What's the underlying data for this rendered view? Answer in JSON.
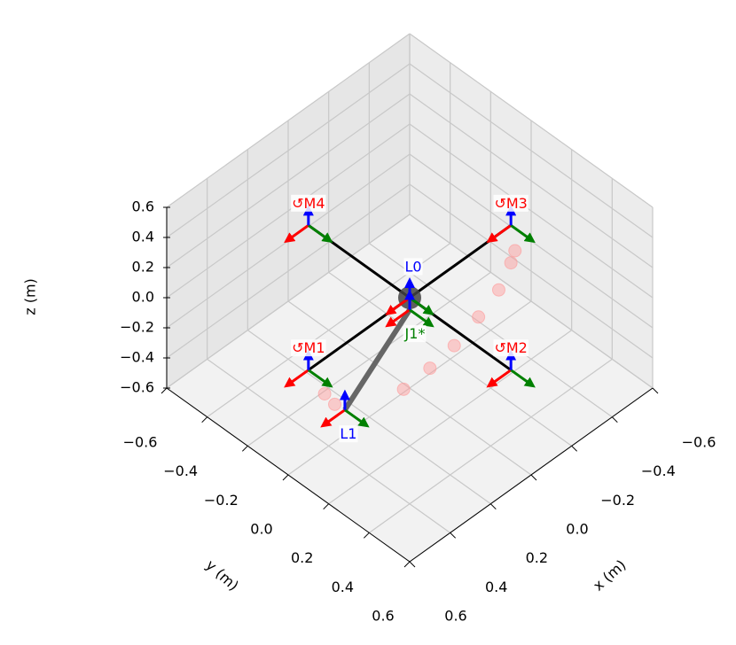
{
  "chart_data": {
    "type": "scatter3d",
    "xlabel": "x (m)",
    "ylabel": "y (m)",
    "zlabel": "z (m)",
    "xlim": [
      -0.6,
      0.6
    ],
    "ylim": [
      -0.6,
      0.6
    ],
    "zlim": [
      -0.6,
      0.6
    ],
    "xticks": [
      {
        "value": -0.6,
        "label": "−0.6"
      },
      {
        "value": -0.4,
        "label": "−0.4"
      },
      {
        "value": -0.2,
        "label": "−0.2"
      },
      {
        "value": 0,
        "label": "0.0"
      },
      0.2,
      0.4,
      0.6
    ],
    "yticks": [
      {
        "value": -0.6,
        "label": "−0.6"
      },
      {
        "value": -0.4,
        "label": "−0.4"
      },
      {
        "value": -0.2,
        "label": "−0.2"
      },
      {
        "value": 0,
        "label": "0.0"
      },
      0.2,
      0.4,
      0.6
    ],
    "zticks": [
      {
        "value": -0.6,
        "label": "−0.6"
      },
      {
        "value": -0.4,
        "label": "−0.4"
      },
      {
        "value": -0.2,
        "label": "−0.2"
      },
      {
        "value": 0,
        "label": "0.0"
      },
      0.2,
      0.4,
      0.6
    ],
    "grid": true,
    "links": [
      {
        "name": "L0",
        "x": 0,
        "y": 0,
        "z": 0,
        "color": "#0000ff"
      },
      {
        "name": "L1",
        "x": 0.35,
        "y": 0.03,
        "z": -0.38,
        "color": "#0000ff"
      }
    ],
    "joints": [
      {
        "name": "J1*",
        "x": 0,
        "y": 0,
        "z": -0.08,
        "color": "#008000"
      }
    ],
    "motors": [
      {
        "name": "↺M1",
        "x": 0.5,
        "y": 0,
        "z": 0,
        "color": "#ff0000"
      },
      {
        "name": "↺M2",
        "x": 0,
        "y": 0.5,
        "z": 0,
        "color": "#ff0000"
      },
      {
        "name": "↺M3",
        "x": -0.5,
        "y": 0,
        "z": 0,
        "color": "#ff0000"
      },
      {
        "name": "↺M4",
        "x": 0,
        "y": -0.5,
        "z": 0,
        "color": "#ff0000"
      }
    ],
    "trail": {
      "color": "#ff9999",
      "x": [
        0.36,
        0.34,
        0.17,
        0.1,
        0.04,
        -0.02,
        -0.07,
        -0.1,
        -0.11
      ],
      "y": [
        -0.06,
        -0.03,
        0.14,
        0.2,
        0.26,
        0.32,
        0.37,
        0.4,
        0.41
      ],
      "z": [
        -0.35,
        -0.41,
        -0.31,
        -0.18,
        -0.03,
        0.16,
        0.34,
        0.52,
        0.6
      ]
    }
  }
}
